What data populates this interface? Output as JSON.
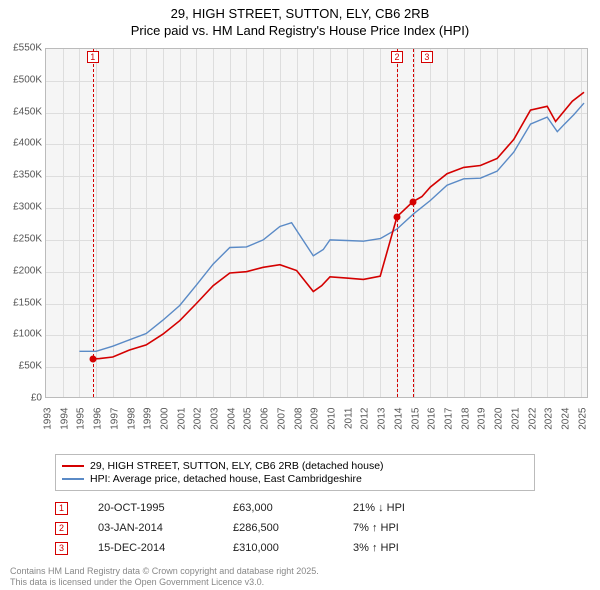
{
  "title": {
    "line1": "29, HIGH STREET, SUTTON, ELY, CB6 2RB",
    "line2": "Price paid vs. HM Land Registry's House Price Index (HPI)"
  },
  "chart": {
    "type": "line",
    "background_color": "#f5f5f5",
    "grid_color": "#dddddd",
    "border_color": "#bbbbbb",
    "y": {
      "min": 0,
      "max": 550000,
      "step": 50000,
      "labels": [
        "£0",
        "£50K",
        "£100K",
        "£150K",
        "£200K",
        "£250K",
        "£300K",
        "£350K",
        "£400K",
        "£450K",
        "£500K",
        "£550K"
      ],
      "label_fontsize": 10,
      "label_color": "#555555"
    },
    "x": {
      "min": 1993,
      "max": 2025.5,
      "step": 1,
      "labels": [
        "1993",
        "1994",
        "1995",
        "1996",
        "1997",
        "1998",
        "1999",
        "2000",
        "2001",
        "2002",
        "2003",
        "2004",
        "2005",
        "2006",
        "2007",
        "2008",
        "2009",
        "2010",
        "2011",
        "2012",
        "2013",
        "2014",
        "2015",
        "2016",
        "2017",
        "2018",
        "2019",
        "2020",
        "2021",
        "2022",
        "2023",
        "2024",
        "2025"
      ],
      "label_fontsize": 10,
      "label_color": "#555555",
      "rotation": -90
    },
    "series": [
      {
        "name": "price_paid",
        "label": "29, HIGH STREET, SUTTON, ELY, CB6 2RB (detached house)",
        "color": "#d40000",
        "line_width": 1.6,
        "points": [
          [
            1995.8,
            63000
          ],
          [
            1996.2,
            63500
          ],
          [
            1997.0,
            66000
          ],
          [
            1998.0,
            77000
          ],
          [
            1999.0,
            85000
          ],
          [
            2000.0,
            102000
          ],
          [
            2001.0,
            123000
          ],
          [
            2002.0,
            150000
          ],
          [
            2003.0,
            178000
          ],
          [
            2004.0,
            198000
          ],
          [
            2005.0,
            200000
          ],
          [
            2006.0,
            207000
          ],
          [
            2007.0,
            211000
          ],
          [
            2008.0,
            202000
          ],
          [
            2009.0,
            169000
          ],
          [
            2009.5,
            178000
          ],
          [
            2010.0,
            192000
          ],
          [
            2011.0,
            190000
          ],
          [
            2012.0,
            188000
          ],
          [
            2013.0,
            193000
          ],
          [
            2014.01,
            286500
          ],
          [
            2014.96,
            310000
          ],
          [
            2015.5,
            318000
          ],
          [
            2016.0,
            333000
          ],
          [
            2017.0,
            354000
          ],
          [
            2018.0,
            364000
          ],
          [
            2019.0,
            367000
          ],
          [
            2020.0,
            378000
          ],
          [
            2021.0,
            408000
          ],
          [
            2022.0,
            454000
          ],
          [
            2023.0,
            460000
          ],
          [
            2023.5,
            436000
          ],
          [
            2024.0,
            452000
          ],
          [
            2024.5,
            468000
          ],
          [
            2025.2,
            482000
          ]
        ],
        "dots": [
          {
            "x": 1995.8,
            "y": 63000
          },
          {
            "x": 2014.01,
            "y": 286500
          },
          {
            "x": 2014.96,
            "y": 310000
          }
        ]
      },
      {
        "name": "hpi",
        "label": "HPI: Average price, detached house, East Cambridgeshire",
        "color": "#5a8ac6",
        "line_width": 1.4,
        "points": [
          [
            1995.0,
            75000
          ],
          [
            1996.0,
            75000
          ],
          [
            1997.0,
            83000
          ],
          [
            1998.0,
            93000
          ],
          [
            1999.0,
            103000
          ],
          [
            2000.0,
            124000
          ],
          [
            2001.0,
            147000
          ],
          [
            2002.0,
            179000
          ],
          [
            2003.0,
            212000
          ],
          [
            2004.0,
            238000
          ],
          [
            2005.0,
            239000
          ],
          [
            2006.0,
            250000
          ],
          [
            2007.0,
            271000
          ],
          [
            2007.7,
            277000
          ],
          [
            2008.0,
            265000
          ],
          [
            2009.0,
            225000
          ],
          [
            2009.6,
            235000
          ],
          [
            2010.0,
            250000
          ],
          [
            2011.0,
            249000
          ],
          [
            2012.0,
            248000
          ],
          [
            2013.0,
            252000
          ],
          [
            2014.0,
            267000
          ],
          [
            2015.0,
            291000
          ],
          [
            2016.0,
            312000
          ],
          [
            2017.0,
            336000
          ],
          [
            2018.0,
            346000
          ],
          [
            2019.0,
            347000
          ],
          [
            2020.0,
            358000
          ],
          [
            2021.0,
            388000
          ],
          [
            2022.0,
            432000
          ],
          [
            2023.0,
            443000
          ],
          [
            2023.6,
            420000
          ],
          [
            2024.0,
            431000
          ],
          [
            2024.6,
            447000
          ],
          [
            2025.2,
            465000
          ]
        ]
      }
    ],
    "events": [
      {
        "n": "1",
        "x": 1995.8,
        "date": "20-OCT-1995",
        "price": "£63,000",
        "hpi": "21% ↓ HPI",
        "color": "#d40000"
      },
      {
        "n": "2",
        "x": 2014.01,
        "date": "03-JAN-2014",
        "price": "£286,500",
        "hpi": "7% ↑ HPI",
        "color": "#d40000"
      },
      {
        "n": "3",
        "x": 2014.96,
        "date": "15-DEC-2014",
        "price": "£310,000",
        "hpi": "3% ↑ HPI",
        "color": "#d40000"
      }
    ],
    "event_marker": {
      "size": 12,
      "fontsize": 9,
      "bg": "#ffffff"
    }
  },
  "legend": {
    "border_color": "#bbbbbb",
    "fontsize": 10.5
  },
  "footer": {
    "line1": "Contains HM Land Registry data © Crown copyright and database right 2025.",
    "line2": "This data is licensed under the Open Government Licence v3.0.",
    "color": "#888888",
    "fontsize": 9
  }
}
